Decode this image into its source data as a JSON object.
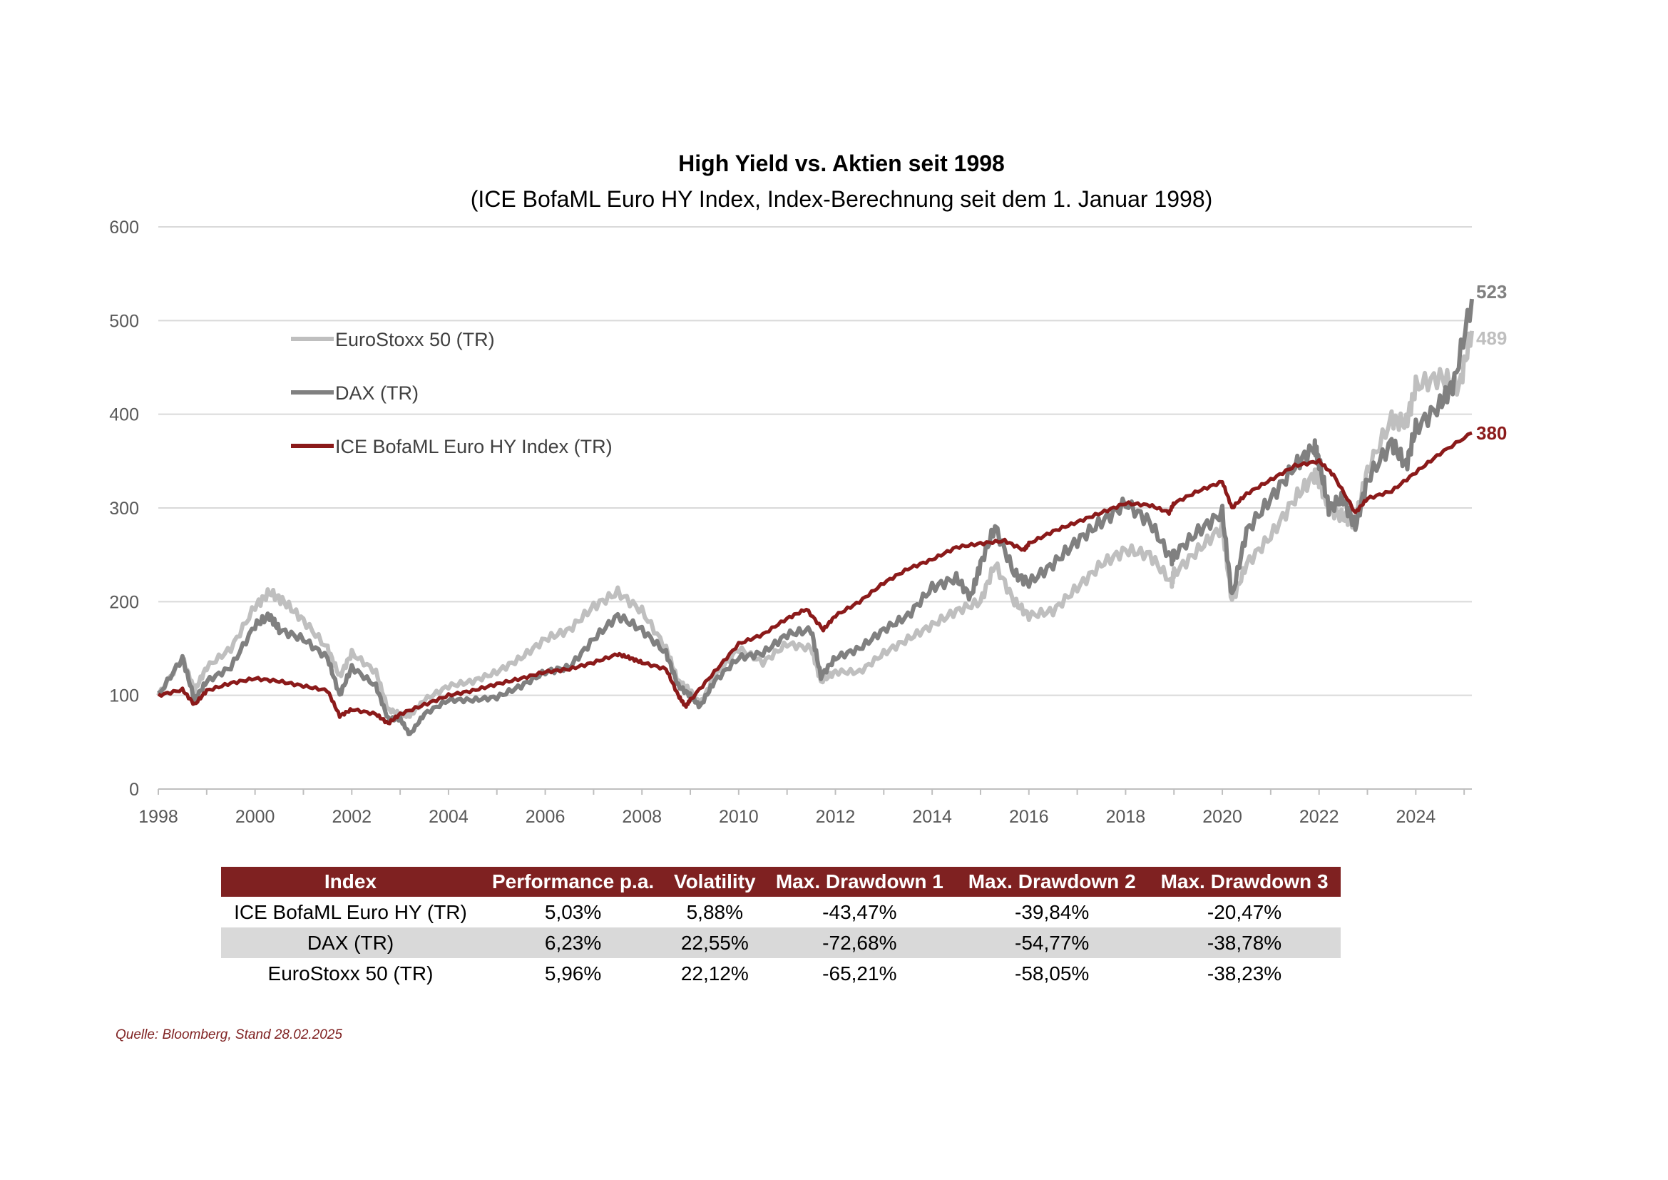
{
  "chart_data": {
    "type": "line",
    "title": "High Yield vs. Aktien seit 1998",
    "subtitle": "(ICE BofaML Euro HY Index, Index-Berechnung seit dem 1. Januar 1998)",
    "xlabel": "",
    "ylabel": "",
    "xlim": [
      1998,
      2025.16
    ],
    "ylim": [
      0,
      600
    ],
    "x_ticks": [
      "1998",
      "2000",
      "2002",
      "2004",
      "2006",
      "2008",
      "2010",
      "2012",
      "2014",
      "2016",
      "2018",
      "2020",
      "2022",
      "2024"
    ],
    "y_ticks": [
      "0",
      "100",
      "200",
      "300",
      "400",
      "500",
      "600"
    ],
    "grid": true,
    "legend_position": "top-left",
    "series": [
      {
        "name": "EuroStoxx 50 (TR)",
        "color": "#bfbfbf",
        "end_label": "489",
        "x": [
          1998,
          1998.5,
          1998.75,
          1999,
          1999.5,
          2000,
          2000.3,
          2000.6,
          2001,
          2001.5,
          2001.75,
          2002,
          2002.5,
          2002.75,
          2003,
          2003.2,
          2003.5,
          2004,
          2004.5,
          2005,
          2005.5,
          2006,
          2006.5,
          2007,
          2007.5,
          2008,
          2008.5,
          2008.75,
          2009,
          2009.2,
          2009.5,
          2010,
          2010.5,
          2011,
          2011.5,
          2011.7,
          2012,
          2012.5,
          2013,
          2013.5,
          2014,
          2014.5,
          2015,
          2015.3,
          2015.7,
          2016,
          2016.5,
          2017,
          2017.5,
          2018,
          2018.5,
          2018.95,
          2019,
          2019.5,
          2020,
          2020.2,
          2020.5,
          2021,
          2021.5,
          2021.9,
          2022,
          2022.2,
          2022.5,
          2022.75,
          2023,
          2023.5,
          2023.8,
          2024,
          2024.5,
          2024.9,
          2025.16
        ],
        "y": [
          100,
          140,
          105,
          130,
          150,
          195,
          210,
          200,
          180,
          150,
          120,
          145,
          125,
          85,
          80,
          78,
          95,
          110,
          115,
          125,
          140,
          160,
          170,
          195,
          210,
          190,
          150,
          115,
          105,
          90,
          120,
          150,
          135,
          155,
          150,
          115,
          125,
          125,
          145,
          160,
          175,
          190,
          200,
          240,
          200,
          185,
          190,
          215,
          240,
          255,
          250,
          220,
          230,
          255,
          280,
          200,
          240,
          270,
          310,
          335,
          330,
          300,
          290,
          285,
          340,
          395,
          390,
          430,
          440,
          430,
          489
        ]
      },
      {
        "name": "DAX (TR)",
        "color": "#808080",
        "end_label": "523",
        "x": [
          1998,
          1998.5,
          1998.75,
          1999,
          1999.5,
          2000,
          2000.3,
          2000.5,
          2001,
          2001.5,
          2001.75,
          2002,
          2002.5,
          2002.75,
          2003,
          2003.2,
          2003.5,
          2004,
          2004.5,
          2005,
          2005.5,
          2006,
          2006.5,
          2007,
          2007.5,
          2008,
          2008.5,
          2008.75,
          2009,
          2009.2,
          2009.5,
          2010,
          2010.5,
          2011,
          2011.5,
          2011.7,
          2012,
          2012.5,
          2013,
          2013.5,
          2014,
          2014.5,
          2014.8,
          2015,
          2015.3,
          2015.7,
          2016,
          2016.5,
          2017,
          2017.5,
          2018,
          2018.5,
          2018.95,
          2019,
          2019.5,
          2020,
          2020.2,
          2020.5,
          2021,
          2021.5,
          2021.9,
          2022,
          2022.2,
          2022.5,
          2022.75,
          2023,
          2023.5,
          2023.8,
          2024,
          2024.5,
          2024.8,
          2025.16
        ],
        "y": [
          100,
          140,
          95,
          115,
          130,
          175,
          185,
          170,
          160,
          140,
          100,
          130,
          110,
          75,
          75,
          58,
          80,
          95,
          95,
          98,
          110,
          125,
          130,
          160,
          185,
          170,
          145,
          110,
          100,
          88,
          115,
          140,
          145,
          165,
          170,
          120,
          140,
          150,
          170,
          185,
          215,
          225,
          205,
          240,
          280,
          230,
          220,
          240,
          265,
          285,
          305,
          285,
          245,
          250,
          275,
          295,
          205,
          275,
          310,
          345,
          365,
          350,
          300,
          310,
          280,
          330,
          370,
          345,
          385,
          410,
          435,
          523
        ]
      },
      {
        "name": "ICE BofaML Euro HY Index (TR)",
        "color": "#8b1a1a",
        "end_label": "380",
        "x": [
          1998,
          1998.5,
          1998.75,
          1999,
          1999.5,
          2000,
          2000.5,
          2001,
          2001.5,
          2001.75,
          2002,
          2002.5,
          2002.75,
          2003,
          2003.5,
          2004,
          2004.5,
          2005,
          2005.5,
          2006,
          2006.5,
          2007,
          2007.5,
          2007.75,
          2008,
          2008.5,
          2008.75,
          2008.9,
          2009,
          2009.5,
          2010,
          2010.5,
          2011,
          2011.4,
          2011.75,
          2012,
          2012.5,
          2013,
          2013.5,
          2014,
          2014.5,
          2015,
          2015.5,
          2015.9,
          2016,
          2016.5,
          2017,
          2017.5,
          2018,
          2018.5,
          2018.9,
          2019,
          2019.5,
          2020,
          2020.2,
          2020.5,
          2021,
          2021.5,
          2022,
          2022.3,
          2022.75,
          2023,
          2023.5,
          2024,
          2024.5,
          2025.16
        ],
        "y": [
          100,
          106,
          90,
          105,
          113,
          118,
          115,
          110,
          105,
          78,
          85,
          80,
          70,
          80,
          90,
          100,
          105,
          112,
          118,
          125,
          128,
          135,
          144,
          140,
          135,
          128,
          100,
          88,
          95,
          125,
          155,
          165,
          182,
          192,
          170,
          185,
          200,
          220,
          235,
          245,
          258,
          262,
          265,
          255,
          262,
          275,
          285,
          295,
          305,
          303,
          295,
          305,
          318,
          328,
          300,
          315,
          330,
          345,
          350,
          335,
          295,
          310,
          318,
          338,
          358,
          380
        ]
      }
    ]
  },
  "table": {
    "headers": [
      "Index",
      "Performance p.a.",
      "Volatility",
      "Max. Drawdown 1",
      "Max. Drawdown 2",
      "Max. Drawdown 3"
    ],
    "rows": [
      [
        "ICE BofaML Euro HY (TR)",
        "5,03%",
        "5,88%",
        "-43,47%",
        "-39,84%",
        "-20,47%"
      ],
      [
        "DAX (TR)",
        "6,23%",
        "22,55%",
        "-72,68%",
        "-54,77%",
        "-38,78%"
      ],
      [
        "EuroStoxx 50 (TR)",
        "5,96%",
        "22,12%",
        "-65,21%",
        "-58,05%",
        "-38,23%"
      ]
    ]
  },
  "source": "Quelle: Bloomberg, Stand 28.02.2025"
}
